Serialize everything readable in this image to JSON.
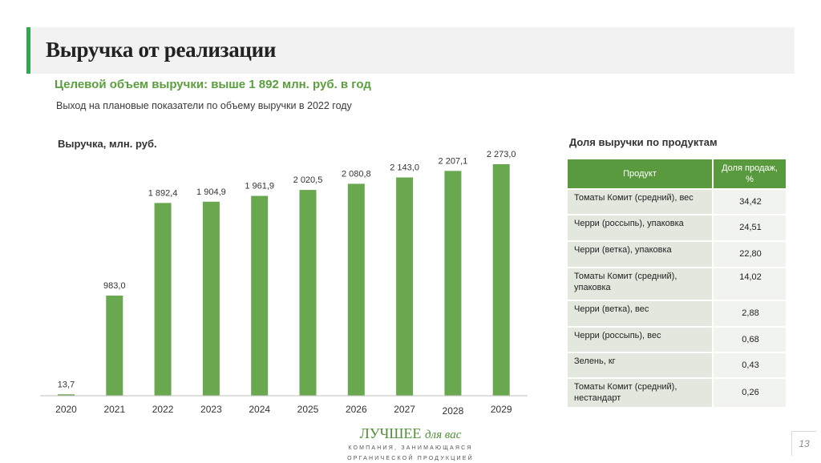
{
  "header": {
    "title": "Выручка от реализации",
    "accent_color": "#2fa84f"
  },
  "target_line": "Целевой объем выручки: выше 1 892 млн. руб. в год",
  "sub_line": "Выход на плановые показатели по объему выручки в 2022 году",
  "chart_data": {
    "type": "bar",
    "title": "Выручка, млн. руб.",
    "categories": [
      "2020",
      "2021",
      "2022",
      "2023",
      "2024",
      "2025",
      "2026",
      "2027",
      "2028",
      "2029"
    ],
    "values": [
      13.7,
      983.0,
      1892.4,
      1904.9,
      1961.9,
      2020.5,
      2080.8,
      2143.0,
      2207.1,
      2273.0
    ],
    "value_labels": [
      "13,7",
      "983,0",
      "1 892,4",
      "1 904,9",
      "1 961,9",
      "2 020,5",
      "2 080,8",
      "2 143,0",
      "2 207,1",
      "2 273,0"
    ],
    "ylim": [
      0,
      2273.0
    ],
    "grid": false,
    "bar_color": "#6aa84f"
  },
  "share_table": {
    "title": "Доля выручки по продуктам",
    "headers": [
      "Продукт",
      "Доля продаж, %"
    ],
    "rows": [
      {
        "product": "Томаты Комит (средний), вес",
        "share": "34,42"
      },
      {
        "product": "Черри (россыпь), упаковка",
        "share": "24,51"
      },
      {
        "product": "Черри (ветка), упаковка",
        "share": "22,80"
      },
      {
        "product": "Томаты Комит (средний), упаковка",
        "share": "14,02"
      },
      {
        "product": "Черри (ветка), вес",
        "share": "2,88"
      },
      {
        "product": "Черри (россыпь), вес",
        "share": "0,68"
      },
      {
        "product": "Зелень, кг",
        "share": "0,43"
      },
      {
        "product": "Томаты Комит (средний), нестандарт",
        "share": "0,26"
      }
    ],
    "header_color": "#5a9a3e"
  },
  "logo": {
    "main": "ЛУЧШЕЕ",
    "script": "для вас",
    "tagline1": "КОМПАНИЯ, ЗАНИМАЮЩАЯСЯ",
    "tagline2": "ОРГАНИЧЕСКОЙ ПРОДУКЦИЕЙ"
  },
  "slide_number": "13"
}
